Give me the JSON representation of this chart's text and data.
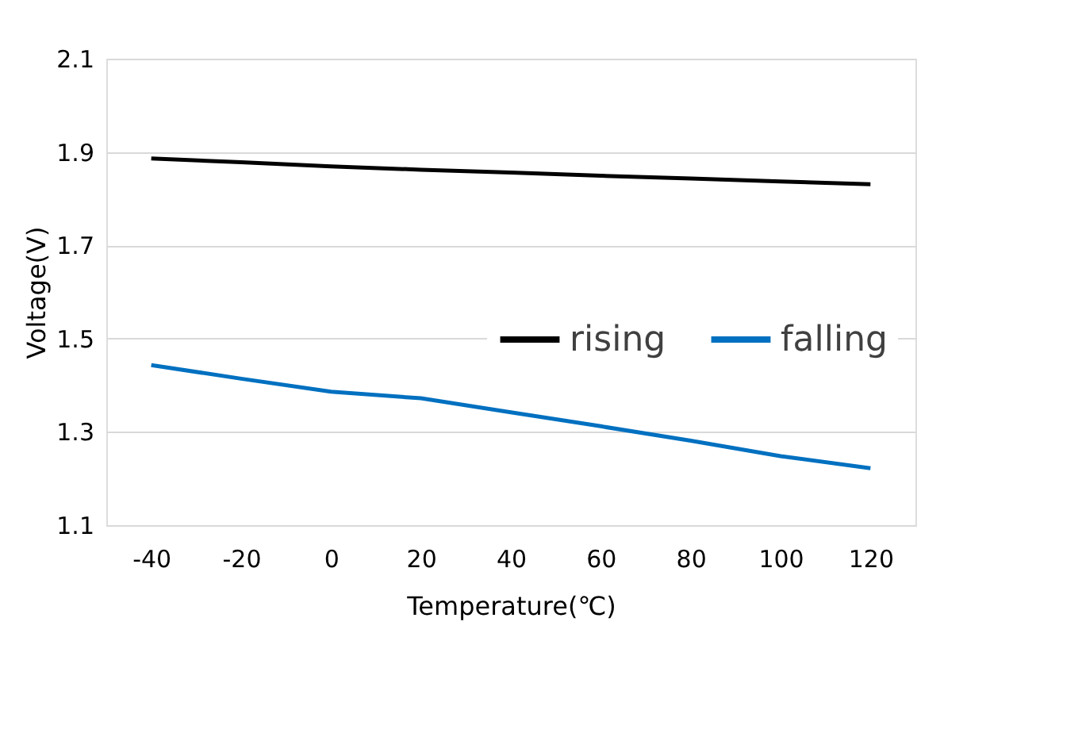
{
  "chart_data": {
    "type": "line",
    "xlabel": "Temperature(℃)",
    "ylabel": "Voltage(V)",
    "x": [
      -40,
      -20,
      0,
      20,
      40,
      60,
      80,
      100,
      120
    ],
    "series": [
      {
        "name": "rising",
        "color": "#000000",
        "values": [
          1.886,
          1.878,
          1.869,
          1.862,
          1.856,
          1.849,
          1.843,
          1.837,
          1.831
        ]
      },
      {
        "name": "falling",
        "color": "#0070c0",
        "values": [
          1.443,
          1.414,
          1.386,
          1.372,
          1.342,
          1.312,
          1.281,
          1.248,
          1.222
        ]
      }
    ],
    "xlim": [
      -50,
      130
    ],
    "xticks": [
      -40,
      -20,
      0,
      20,
      40,
      60,
      80,
      100,
      120
    ],
    "ylim": [
      1.1,
      2.1
    ],
    "yticks": [
      1.1,
      1.3,
      1.5,
      1.7,
      1.9,
      2.1
    ],
    "grid": "y",
    "legend": "right",
    "marker": "none",
    "line_style": "solid"
  }
}
